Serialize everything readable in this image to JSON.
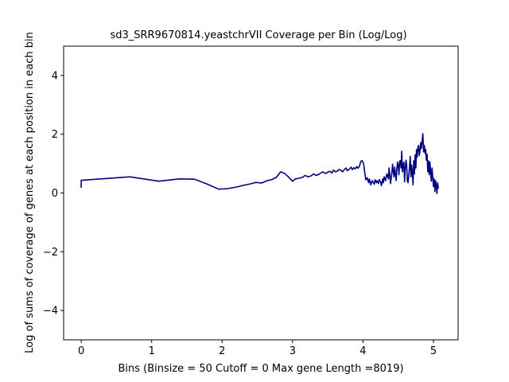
{
  "chart_data": {
    "type": "line",
    "title": "sd3_SRR9670814.yeastchrVII Coverage per Bin (Log/Log)",
    "xlabel": "Bins  (Binsize = 50 Cutoff = 0 Max gene Length =8019)",
    "ylabel": "Log of sums of coverage of genes at each position in each bin",
    "xlim": [
      -0.25,
      5.35
    ],
    "ylim": [
      -5,
      5
    ],
    "xticks": [
      0,
      1,
      2,
      3,
      4,
      5
    ],
    "yticks": [
      -4,
      -2,
      0,
      2,
      4
    ],
    "xtick_labels": [
      "0",
      "1",
      "2",
      "3",
      "4",
      "5"
    ],
    "ytick_labels": [
      "−4",
      "−2",
      "0",
      "2",
      "4"
    ],
    "grid": false,
    "line_color": "#000080",
    "series": [
      {
        "x": [
          0,
          0,
          0.69,
          1.1,
          1.39,
          1.61,
          1.79,
          1.95,
          2.08,
          2.2,
          2.3,
          2.4,
          2.48,
          2.56,
          2.64,
          2.71,
          2.77,
          2.83,
          2.89,
          2.94,
          3.0,
          3.04,
          3.09,
          3.14,
          3.18,
          3.22,
          3.26,
          3.3,
          3.33,
          3.37,
          3.4,
          3.43,
          3.47,
          3.5,
          3.53,
          3.56,
          3.58,
          3.61,
          3.64,
          3.66,
          3.69,
          3.71,
          3.74,
          3.76,
          3.78,
          3.81,
          3.83,
          3.85,
          3.87,
          3.89,
          3.91,
          3.93,
          3.95,
          3.97,
          3.99,
          4.01,
          4.03,
          4.04,
          4.06,
          4.08,
          4.09,
          4.11,
          4.13,
          4.14,
          4.16,
          4.17,
          4.19,
          4.2,
          4.22,
          4.23,
          4.25,
          4.26,
          4.28,
          4.29,
          4.3,
          4.32,
          4.33,
          4.34,
          4.36,
          4.37,
          4.38,
          4.39,
          4.41,
          4.42,
          4.43,
          4.44,
          4.45,
          4.47,
          4.48,
          4.49,
          4.5,
          4.51,
          4.52,
          4.53,
          4.54,
          4.55,
          4.56,
          4.57,
          4.58,
          4.59,
          4.6,
          4.61,
          4.62,
          4.63,
          4.64,
          4.65,
          4.66,
          4.67,
          4.68,
          4.69,
          4.7,
          4.71,
          4.72,
          4.73,
          4.74,
          4.75,
          4.76,
          4.77,
          4.78,
          4.79,
          4.8,
          4.81,
          4.82,
          4.83,
          4.84,
          4.85,
          4.86,
          4.87,
          4.88,
          4.89,
          4.9,
          4.91,
          4.92,
          4.93,
          4.94,
          4.95,
          4.96,
          4.97,
          4.98,
          4.99,
          5.0,
          5.01,
          5.02,
          5.03,
          5.04,
          5.05,
          5.06,
          5.07
        ],
        "y": [
          0.18,
          0.43,
          0.55,
          0.4,
          0.48,
          0.47,
          0.3,
          0.13,
          0.15,
          0.2,
          0.26,
          0.31,
          0.36,
          0.34,
          0.42,
          0.46,
          0.53,
          0.72,
          0.66,
          0.55,
          0.4,
          0.48,
          0.5,
          0.53,
          0.6,
          0.55,
          0.58,
          0.65,
          0.6,
          0.63,
          0.68,
          0.72,
          0.66,
          0.71,
          0.74,
          0.68,
          0.78,
          0.72,
          0.75,
          0.8,
          0.77,
          0.72,
          0.81,
          0.85,
          0.76,
          0.82,
          0.88,
          0.8,
          0.86,
          0.82,
          0.9,
          0.84,
          0.92,
          1.08,
          1.1,
          0.98,
          0.6,
          0.45,
          0.52,
          0.35,
          0.48,
          0.28,
          0.42,
          0.38,
          0.3,
          0.45,
          0.35,
          0.42,
          0.32,
          0.46,
          0.38,
          0.25,
          0.48,
          0.35,
          0.55,
          0.42,
          0.58,
          0.65,
          0.48,
          0.85,
          0.62,
          0.32,
          0.68,
          0.98,
          0.72,
          0.55,
          0.88,
          0.42,
          0.78,
          1.05,
          0.95,
          0.62,
          1.08,
          1.1,
          0.85,
          1.42,
          0.72,
          0.95,
          1.05,
          0.38,
          0.85,
          1.12,
          0.95,
          0.42,
          0.35,
          0.62,
          0.85,
          1.25,
          0.55,
          0.95,
          0.72,
          0.28,
          1.1,
          0.65,
          1.3,
          0.85,
          1.48,
          1.22,
          1.55,
          1.62,
          1.28,
          1.45,
          1.72,
          1.52,
          1.78,
          2.02,
          1.4,
          1.62,
          1.35,
          1.48,
          1.12,
          1.32,
          0.72,
          1.1,
          0.62,
          1.05,
          0.68,
          0.4,
          0.85,
          0.55,
          0.22,
          0.48,
          0.05,
          0.42,
          0.28,
          -0.02,
          0.35,
          0.15
        ]
      }
    ]
  }
}
